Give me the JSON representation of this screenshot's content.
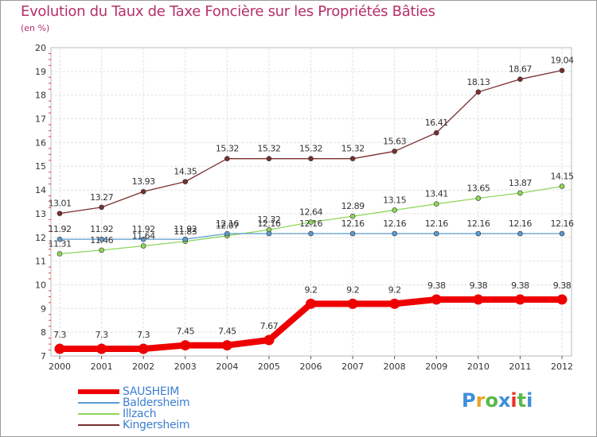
{
  "header": {
    "title": "Evolution du Taux de Taxe Foncière sur les Propriétés Bâties",
    "unit": "(en %)"
  },
  "logo": {
    "text": "Proxiti",
    "colors": [
      "#3d8fd8",
      "#e8a42a",
      "#5ab848",
      "#3d8fd8",
      "#e8342a",
      "#5ab848",
      "#3d8fd8"
    ]
  },
  "chart_data": {
    "type": "line",
    "x": [
      "2000",
      "2001",
      "2002",
      "2003",
      "2004",
      "2005",
      "2006",
      "2007",
      "2008",
      "2009",
      "2010",
      "2011",
      "2012"
    ],
    "ylim": [
      7,
      20
    ],
    "yticks": [
      "7",
      "8",
      "9",
      "10",
      "11",
      "12",
      "13",
      "14",
      "15",
      "16",
      "17",
      "18",
      "19",
      "20"
    ],
    "grid": true,
    "legend_position": "bottom-left",
    "series": [
      {
        "name": "SAUSHEIM",
        "color": "#ee0000",
        "values": [
          7.3,
          7.3,
          7.3,
          7.45,
          7.45,
          7.67,
          9.2,
          9.2,
          9.2,
          9.38,
          9.38,
          9.38,
          9.38
        ],
        "labels": [
          "7.3",
          "7.3",
          "7.3",
          "7.45",
          "7.45",
          "7.67",
          "9.2",
          "9.2",
          "9.2",
          "9.38",
          "9.38",
          "9.38",
          "9.38"
        ]
      },
      {
        "name": "Baldersheim",
        "color": "#5b9bd0",
        "values": [
          11.92,
          11.92,
          11.92,
          11.92,
          12.16,
          12.16,
          12.16,
          12.16,
          12.16,
          12.16,
          12.16,
          12.16,
          12.16
        ],
        "labels": [
          "11.92",
          "11.92",
          "11.92",
          "11.92",
          "12.16",
          "12.16",
          "12.16",
          "12.16",
          "12.16",
          "12.16",
          "12.16",
          "12.16",
          "12.16"
        ]
      },
      {
        "name": "Illzach",
        "color": "#8ed65a",
        "values": [
          11.31,
          11.46,
          11.64,
          11.83,
          12.07,
          12.32,
          12.64,
          12.89,
          13.15,
          13.41,
          13.65,
          13.87,
          14.15
        ],
        "labels": [
          "11.31",
          "11.46",
          "11.64",
          "11.83",
          "12.07",
          "12.32",
          "12.64",
          "12.89",
          "13.15",
          "13.41",
          "13.65",
          "13.87",
          "14.15"
        ]
      },
      {
        "name": "Kingersheim",
        "color": "#7a2e2e",
        "values": [
          13.01,
          13.27,
          13.93,
          14.35,
          15.32,
          15.32,
          15.32,
          15.32,
          15.63,
          16.41,
          18.13,
          18.67,
          19.04
        ],
        "labels": [
          "13.01",
          "13.27",
          "13.93",
          "14.35",
          "15.32",
          "15.32",
          "15.32",
          "15.32",
          "15.63",
          "16.41",
          "18.13",
          "18.67",
          "19.04"
        ]
      }
    ]
  }
}
